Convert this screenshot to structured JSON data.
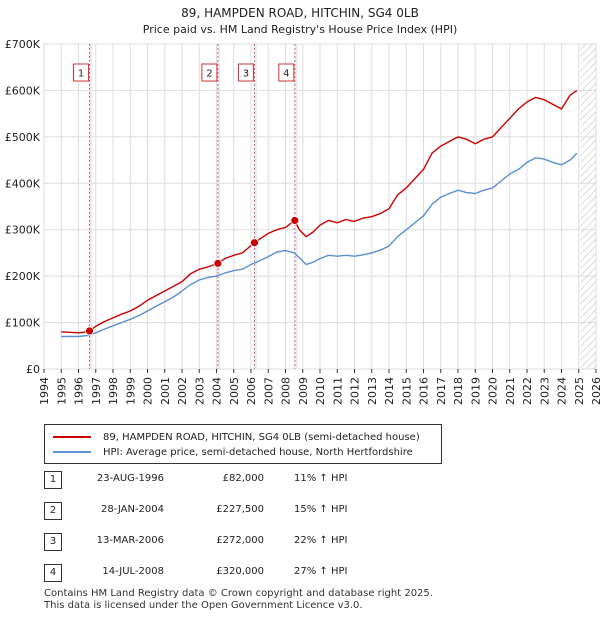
{
  "chart_data": {
    "type": "line",
    "title": "89, HAMPDEN ROAD, HITCHIN, SG4 0LB",
    "subtitle": "Price paid vs. HM Land Registry's House Price Index (HPI)",
    "xlabel": "",
    "ylabel": "",
    "xlim": [
      1994,
      2026
    ],
    "ylim": [
      0,
      700000
    ],
    "x_ticks": [
      "1994",
      "1995",
      "1996",
      "1997",
      "1998",
      "1999",
      "2000",
      "2001",
      "2002",
      "2003",
      "2004",
      "2005",
      "2006",
      "2007",
      "2008",
      "2009",
      "2010",
      "2011",
      "2012",
      "2013",
      "2014",
      "2015",
      "2016",
      "2017",
      "2018",
      "2019",
      "2020",
      "2021",
      "2022",
      "2023",
      "2024",
      "2025",
      "2026"
    ],
    "y_ticks": [
      "£0",
      "£100K",
      "£200K",
      "£300K",
      "£400K",
      "£500K",
      "£600K",
      "£700K"
    ],
    "y_tick_values": [
      0,
      100000,
      200000,
      300000,
      400000,
      500000,
      600000,
      700000
    ],
    "grid": true,
    "hatched_future_from": 2025.1,
    "colors": {
      "price_paid": "#cc0000",
      "hpi": "#5b8fd0",
      "shade": "#e4ecf8",
      "vline": "#e06060"
    },
    "shaded_periods": [
      [
        1996.65,
        1996.8
      ],
      [
        2004.08,
        2004.2
      ],
      [
        2006.2,
        2006.35
      ],
      [
        2008.54,
        2008.7
      ]
    ],
    "series": [
      {
        "name": "89, HAMPDEN ROAD, HITCHIN, SG4 0LB (semi-detached house)",
        "x": [
          1995.0,
          1995.5,
          1996.0,
          1996.3,
          1996.64,
          1997.0,
          1997.5,
          1998.0,
          1998.5,
          1999.0,
          1999.5,
          2000.0,
          2000.5,
          2001.0,
          2001.5,
          2002.0,
          2002.5,
          2003.0,
          2003.5,
          2004.08,
          2004.5,
          2005.0,
          2005.5,
          2006.2,
          2006.6,
          2007.0,
          2007.5,
          2008.0,
          2008.54,
          2008.8,
          2009.2,
          2009.6,
          2010.0,
          2010.5,
          2011.0,
          2011.5,
          2012.0,
          2012.5,
          2013.0,
          2013.5,
          2014.0,
          2014.5,
          2015.0,
          2015.5,
          2016.0,
          2016.5,
          2017.0,
          2017.5,
          2018.0,
          2018.5,
          2019.0,
          2019.5,
          2020.0,
          2020.5,
          2021.0,
          2021.5,
          2022.0,
          2022.5,
          2023.0,
          2023.5,
          2024.0,
          2024.5,
          2024.9
        ],
        "values": [
          80000,
          79000,
          78000,
          79000,
          82000,
          92000,
          102000,
          110000,
          118000,
          125000,
          135000,
          148000,
          158000,
          168000,
          178000,
          188000,
          205000,
          215000,
          220000,
          227500,
          238000,
          245000,
          250000,
          272000,
          282000,
          292000,
          300000,
          305000,
          320000,
          300000,
          285000,
          295000,
          310000,
          320000,
          315000,
          322000,
          318000,
          325000,
          328000,
          335000,
          345000,
          375000,
          390000,
          410000,
          430000,
          465000,
          480000,
          490000,
          500000,
          495000,
          485000,
          495000,
          500000,
          520000,
          540000,
          560000,
          575000,
          585000,
          580000,
          570000,
          560000,
          590000,
          600000
        ]
      },
      {
        "name": "HPI: Average price, semi-detached house, North Hertfordshire",
        "x": [
          1995.0,
          1995.5,
          1996.0,
          1996.5,
          1997.0,
          1997.5,
          1998.0,
          1998.5,
          1999.0,
          1999.5,
          2000.0,
          2000.5,
          2001.0,
          2001.5,
          2002.0,
          2002.5,
          2003.0,
          2003.5,
          2004.0,
          2004.5,
          2005.0,
          2005.5,
          2006.0,
          2006.5,
          2007.0,
          2007.5,
          2008.0,
          2008.5,
          2008.8,
          2009.2,
          2009.6,
          2010.0,
          2010.5,
          2011.0,
          2011.5,
          2012.0,
          2012.5,
          2013.0,
          2013.5,
          2014.0,
          2014.5,
          2015.0,
          2015.5,
          2016.0,
          2016.5,
          2017.0,
          2017.5,
          2018.0,
          2018.5,
          2019.0,
          2019.5,
          2020.0,
          2020.5,
          2021.0,
          2021.5,
          2022.0,
          2022.5,
          2023.0,
          2023.5,
          2024.0,
          2024.5,
          2024.9
        ],
        "values": [
          70000,
          70000,
          70000,
          72000,
          78000,
          86000,
          93000,
          100000,
          107000,
          115000,
          125000,
          135000,
          145000,
          155000,
          168000,
          182000,
          192000,
          197000,
          200000,
          207000,
          212000,
          215000,
          225000,
          233000,
          242000,
          252000,
          255000,
          250000,
          240000,
          225000,
          230000,
          238000,
          245000,
          243000,
          245000,
          243000,
          246000,
          250000,
          256000,
          265000,
          285000,
          300000,
          315000,
          330000,
          355000,
          370000,
          378000,
          385000,
          380000,
          378000,
          385000,
          390000,
          405000,
          420000,
          430000,
          445000,
          455000,
          452000,
          445000,
          440000,
          450000,
          465000
        ]
      }
    ],
    "sales": [
      {
        "label": "1",
        "x": 1996.64,
        "value": 82000
      },
      {
        "label": "2",
        "x": 2004.08,
        "value": 227500
      },
      {
        "label": "3",
        "x": 2006.2,
        "value": 272000
      },
      {
        "label": "4",
        "x": 2008.54,
        "value": 320000
      }
    ]
  },
  "legend": {
    "items": [
      {
        "label": "89, HAMPDEN ROAD, HITCHIN, SG4 0LB (semi-detached house)",
        "color": "#cc0000"
      },
      {
        "label": "HPI: Average price, semi-detached house, North Hertfordshire",
        "color": "#5b8fd0"
      }
    ]
  },
  "sales_table": [
    {
      "num": "1",
      "date": "23-AUG-1996",
      "price": "£82,000",
      "hpi": "11% ↑ HPI"
    },
    {
      "num": "2",
      "date": "28-JAN-2004",
      "price": "£227,500",
      "hpi": "15% ↑ HPI"
    },
    {
      "num": "3",
      "date": "13-MAR-2006",
      "price": "£272,000",
      "hpi": "22% ↑ HPI"
    },
    {
      "num": "4",
      "date": "14-JUL-2008",
      "price": "£320,000",
      "hpi": "27% ↑ HPI"
    }
  ],
  "footer": {
    "line1": "Contains HM Land Registry data © Crown copyright and database right 2025.",
    "line2": "This data is licensed under the Open Government Licence v3.0."
  }
}
